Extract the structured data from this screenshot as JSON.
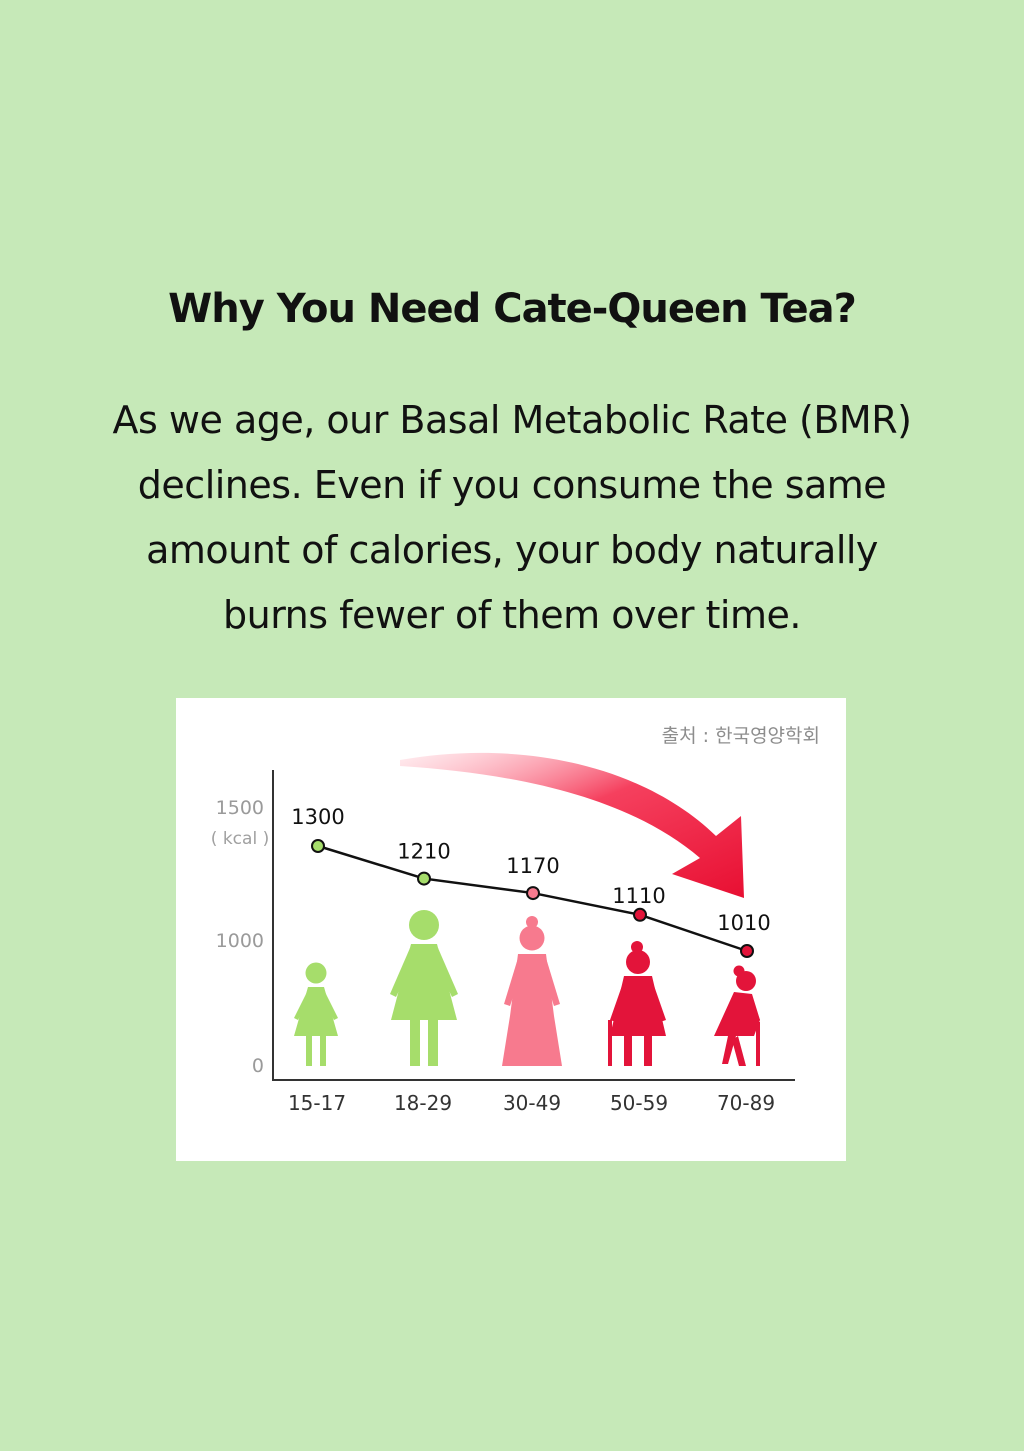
{
  "heading": "Why You Need Cate-Queen Tea?",
  "paragraph": {
    "line1": "As we age, our Basal Metabolic Rate (BMR)",
    "line2": "declines. Even if you consume the same",
    "line3": "amount of calories, your body naturally",
    "line4": "burns fewer of them over time."
  },
  "colors": {
    "background": "#c6e9b8",
    "green": "#a6dd6b",
    "pink": "#f77a8e",
    "red": "#e3143a",
    "arrow": "#ee1438"
  },
  "chart_data": {
    "type": "line",
    "source": "출처 : 한국영양학회",
    "y_unit": "( kcal )",
    "y_ticks": [
      "1500",
      "1000",
      "0"
    ],
    "categories": [
      "15-17",
      "18-29",
      "30-49",
      "50-59",
      "70-89"
    ],
    "values": [
      1300,
      1210,
      1170,
      1110,
      1010
    ],
    "value_labels": [
      "1300",
      "1210",
      "1170",
      "1110",
      "1010"
    ],
    "point_colors": [
      "#a6dd6b",
      "#a6dd6b",
      "#f77a8e",
      "#e3143a",
      "#e3143a"
    ],
    "figures": [
      {
        "icon": "girl-figure-icon",
        "color": "#a6dd6b"
      },
      {
        "icon": "woman-figure-icon",
        "color": "#a6dd6b"
      },
      {
        "icon": "middle-aged-woman-figure-icon",
        "color": "#f77a8e"
      },
      {
        "icon": "older-woman-with-cane-icon",
        "color": "#e3143a"
      },
      {
        "icon": "elderly-woman-with-cane-icon",
        "color": "#e3143a"
      }
    ],
    "grid": false,
    "legend": "none"
  }
}
